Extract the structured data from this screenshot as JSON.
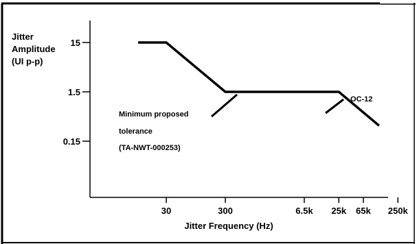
{
  "chart_data": {
    "type": "line",
    "title": "",
    "ylabel_lines": [
      "Jitter",
      "Amplitude",
      "(UI p-p)"
    ],
    "xlabel": "Jitter Frequency (Hz)",
    "x_scale": "log",
    "y_scale": "log",
    "x_ticks": [
      {
        "value": 30,
        "label": "30"
      },
      {
        "value": 300,
        "label": "300"
      },
      {
        "value": 6500,
        "label": "6.5k"
      },
      {
        "value": 25000,
        "label": "25k"
      },
      {
        "value": 65000,
        "label": "65k"
      },
      {
        "value": 250000,
        "label": "250k"
      }
    ],
    "y_ticks": [
      {
        "value": 15,
        "label": "15"
      },
      {
        "value": 1.5,
        "label": "1.5"
      },
      {
        "value": 0.15,
        "label": "0.15"
      }
    ],
    "series": [
      {
        "name": "OC-12",
        "color": "#000000",
        "x": [
          10,
          30,
          300,
          25000,
          120000
        ],
        "y": [
          15,
          15,
          1.5,
          1.5,
          0.31
        ]
      }
    ],
    "annotations": {
      "curve_label": [
        "Minimum proposed",
        "tolerance",
        "(TA-NWT-000253)"
      ],
      "series_label": "OC-12"
    }
  }
}
